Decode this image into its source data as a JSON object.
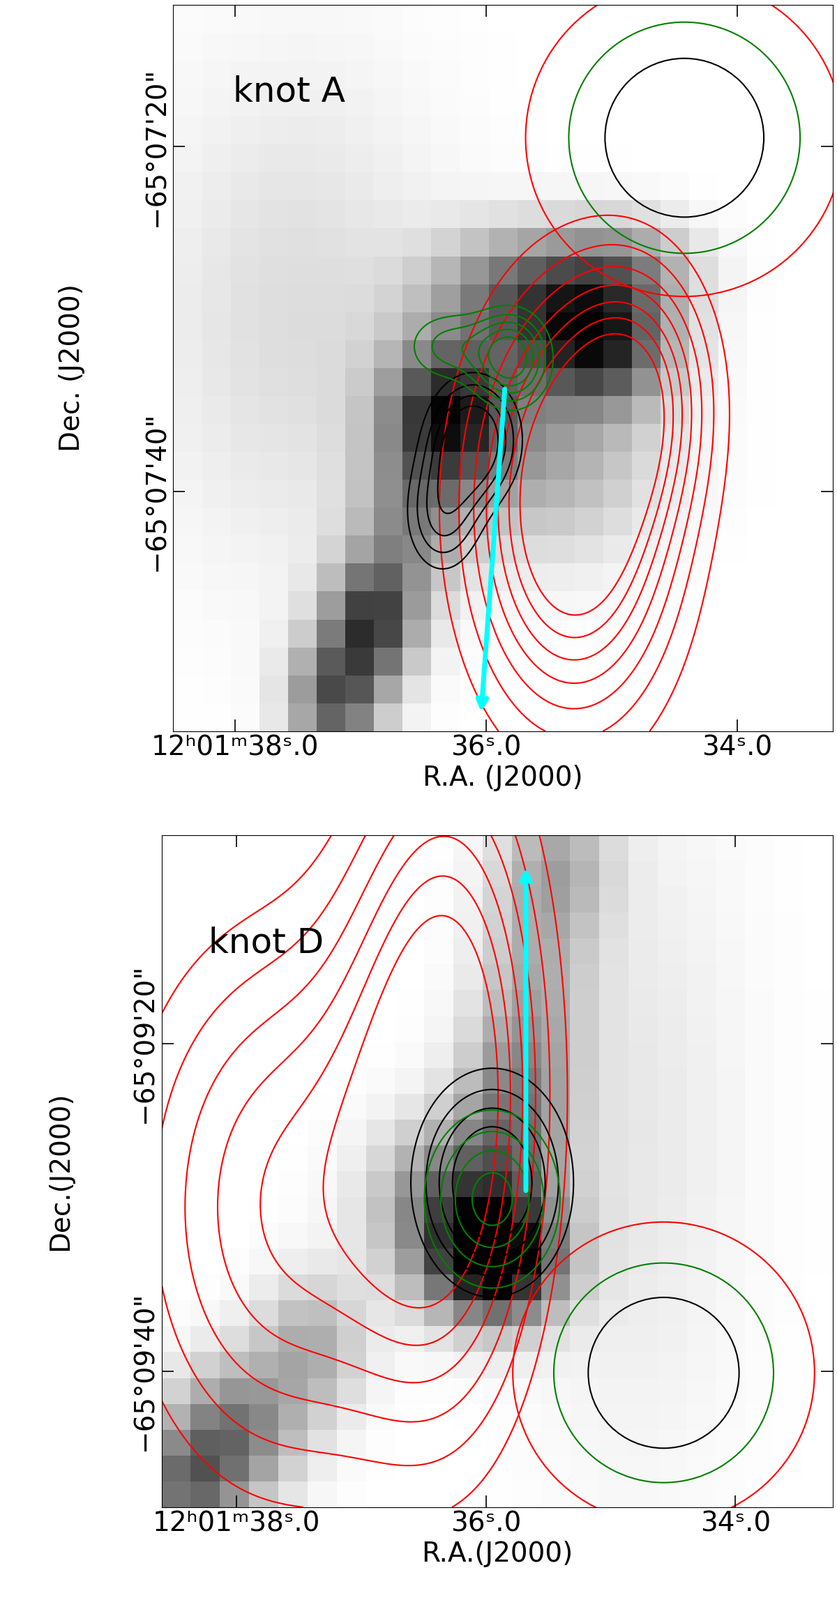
{
  "chart_data": [
    {
      "type": "image_contour",
      "title": "knot A",
      "xlabel": "R.A. (J2000)",
      "ylabel": "Dec. (J2000)",
      "xlim": [
        38.49,
        33.24
      ],
      "ylim": [
        53.9,
        11.8
      ],
      "xticks": [
        {
          "value": 38.0,
          "label": "12ʰ01ᵐ38ˢ.0"
        },
        {
          "value": 36.0,
          "label": "36ˢ.0"
        },
        {
          "value": 34.0,
          "label": "34ˢ.0"
        }
      ],
      "yticks": [
        {
          "value": 20,
          "label": "−65°07'20\""
        },
        {
          "value": 40,
          "label": "−65°07'40\""
        }
      ],
      "image": {
        "components": [
          [
            36.3,
            35.5,
            0.9,
            0.35,
            3.0
          ],
          [
            35.1,
            31.5,
            0.85,
            0.4,
            2.5
          ],
          [
            35.7,
            28.5,
            0.6,
            0.5,
            2.5
          ],
          [
            34.9,
            27.0,
            0.4,
            0.4,
            2.0
          ],
          [
            36.9,
            47.5,
            0.8,
            0.25,
            2.5
          ],
          [
            37.2,
            52.0,
            0.7,
            0.25,
            2.5
          ],
          [
            36.6,
            42.0,
            0.4,
            0.3,
            3.0
          ],
          [
            35.5,
            38.0,
            0.35,
            0.6,
            4.0
          ],
          [
            37.5,
            30.0,
            0.15,
            0.8,
            10.0
          ]
        ]
      },
      "contours": [
        {
          "color": "red",
          "levels": [
            0.15,
            0.25,
            0.35,
            0.45,
            0.55,
            0.65,
            0.75
          ],
          "components": [
            [
              35.3,
              41.0,
              1.0,
              0.55,
              8.0
            ],
            [
              34.8,
              34.0,
              0.5,
              0.4,
              5.0
            ]
          ]
        },
        {
          "color": "black",
          "levels": [
            0.3,
            0.45,
            0.6,
            0.75
          ],
          "components": [
            [
              36.1,
              37.0,
              1.0,
              0.25,
              2.5
            ],
            [
              36.35,
              41.5,
              0.6,
              0.22,
              2.5
            ]
          ]
        },
        {
          "color": "green",
          "levels": [
            0.25,
            0.4,
            0.55,
            0.7,
            0.85
          ],
          "components": [
            [
              35.8,
              32.3,
              1.0,
              0.2,
              1.8
            ],
            [
              36.3,
              31.6,
              0.45,
              0.25,
              1.5
            ]
          ]
        }
      ],
      "beams": [
        {
          "color": "red",
          "radius": 9.2
        },
        {
          "color": "green",
          "radius": 6.7
        },
        {
          "color": "black",
          "radius": 4.6
        }
      ],
      "arrow": {
        "from": [
          35.85,
          33.96
        ],
        "to": [
          36.04,
          52.9
        ],
        "color": "cyan"
      }
    },
    {
      "type": "image_contour",
      "title": "knot D",
      "xlabel": "R.A.(J2000)",
      "ylabel": "Dec.(J2000)",
      "xlim": [
        38.6,
        33.22
      ],
      "ylim": [
        48.3,
        7.3
      ],
      "xticks": [
        {
          "value": 38.0,
          "label": "12ʰ01ᵐ38ˢ.0"
        },
        {
          "value": 36.0,
          "label": "36ˢ.0"
        },
        {
          "value": 34.0,
          "label": "34ˢ.0"
        }
      ],
      "yticks": [
        {
          "value": 20,
          "label": "−65°09'20\""
        },
        {
          "value": 40,
          "label": "−65°09'40\""
        }
      ],
      "image": {
        "components": [
          [
            35.9,
            33.5,
            1.0,
            0.35,
            2.5
          ],
          [
            36.2,
            30.0,
            0.7,
            0.45,
            3.5
          ],
          [
            35.8,
            24.0,
            0.4,
            0.3,
            4.0
          ],
          [
            35.6,
            16.0,
            0.3,
            0.3,
            6.0
          ],
          [
            38.0,
            43.5,
            0.55,
            0.35,
            3.0
          ],
          [
            38.4,
            47.0,
            0.55,
            0.3,
            2.5
          ],
          [
            37.4,
            38.5,
            0.35,
            0.3,
            3.0
          ],
          [
            35.4,
            9.0,
            0.25,
            0.3,
            3.0
          ],
          [
            34.8,
            25.0,
            0.1,
            0.6,
            15.0
          ]
        ]
      },
      "contours": [
        {
          "color": "red",
          "levels": [
            0.2,
            0.3,
            0.4,
            0.5,
            0.6,
            0.7
          ],
          "components": [
            [
              36.3,
              22.0,
              0.8,
              0.55,
              14.0
            ],
            [
              37.6,
              30.0,
              0.6,
              0.9,
              12.0
            ]
          ]
        },
        {
          "color": "black",
          "levels": [
            0.3,
            0.45,
            0.6,
            0.75
          ],
          "components": [
            [
              35.95,
              28.5,
              1.0,
              0.42,
              4.5
            ]
          ]
        },
        {
          "color": "green",
          "levels": [
            0.3,
            0.5,
            0.7,
            0.9
          ],
          "components": [
            [
              35.95,
              29.5,
              1.0,
              0.35,
              3.5
            ]
          ]
        }
      ],
      "beams": [
        {
          "color": "red",
          "radius": 9.2
        },
        {
          "color": "green",
          "radius": 6.7
        },
        {
          "color": "black",
          "radius": 4.6
        }
      ],
      "arrow": {
        "from": [
          35.68,
          29.1
        ],
        "to": [
          35.68,
          9.16
        ],
        "color": "cyan"
      }
    }
  ]
}
